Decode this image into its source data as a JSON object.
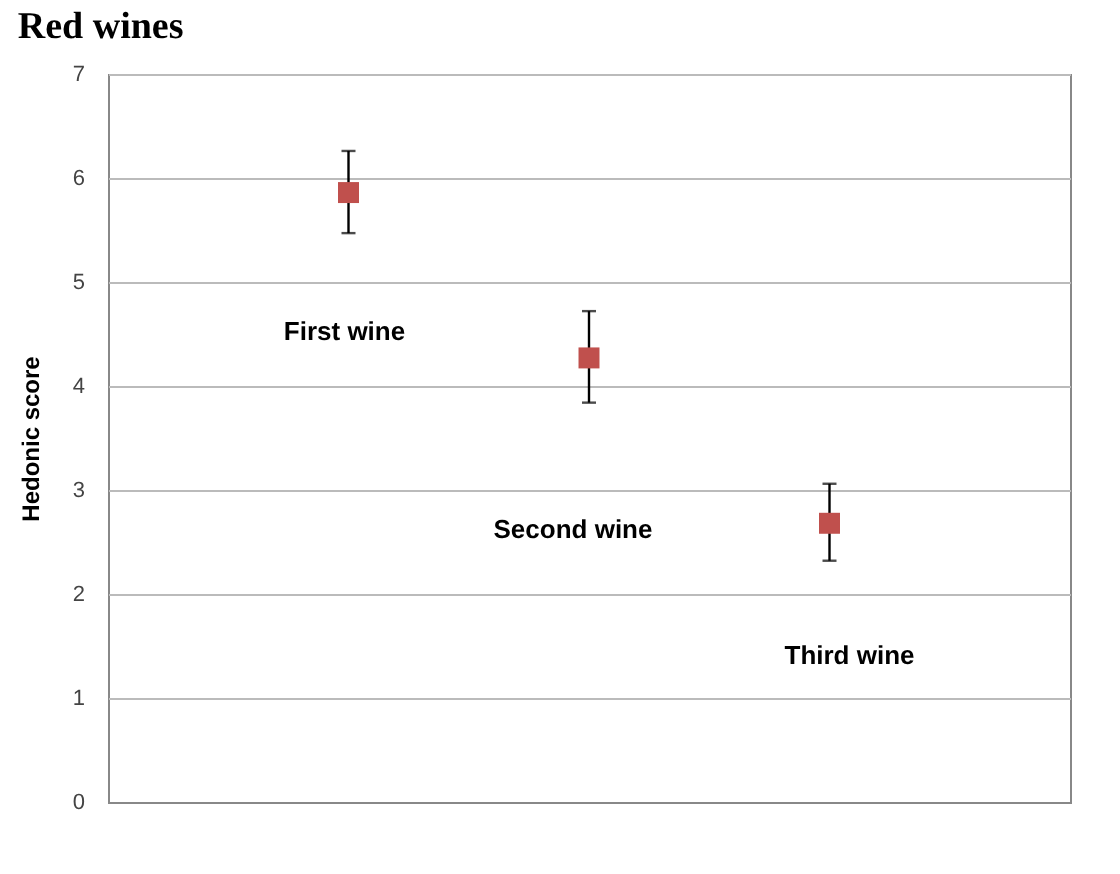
{
  "chart_data": {
    "type": "scatter",
    "title": "Red wines",
    "ylabel": "Hedonic score",
    "categories": [
      null,
      null,
      null
    ],
    "series": [
      {
        "color": "#c0504d",
        "values": [
          5.86,
          4.27,
          2.68
        ],
        "errors": [
          [
            5.47,
            6.26
          ],
          [
            3.84,
            4.72
          ],
          [
            2.32,
            3.06
          ]
        ]
      }
    ],
    "annotations": [
      "First wine",
      "Second wine",
      "Third wine"
    ],
    "ylim": [
      0,
      7
    ],
    "yticks": [
      0,
      1,
      2,
      3,
      4,
      5,
      6,
      7
    ],
    "grid": "y",
    "tick_labels": "y",
    "marker": "square"
  }
}
